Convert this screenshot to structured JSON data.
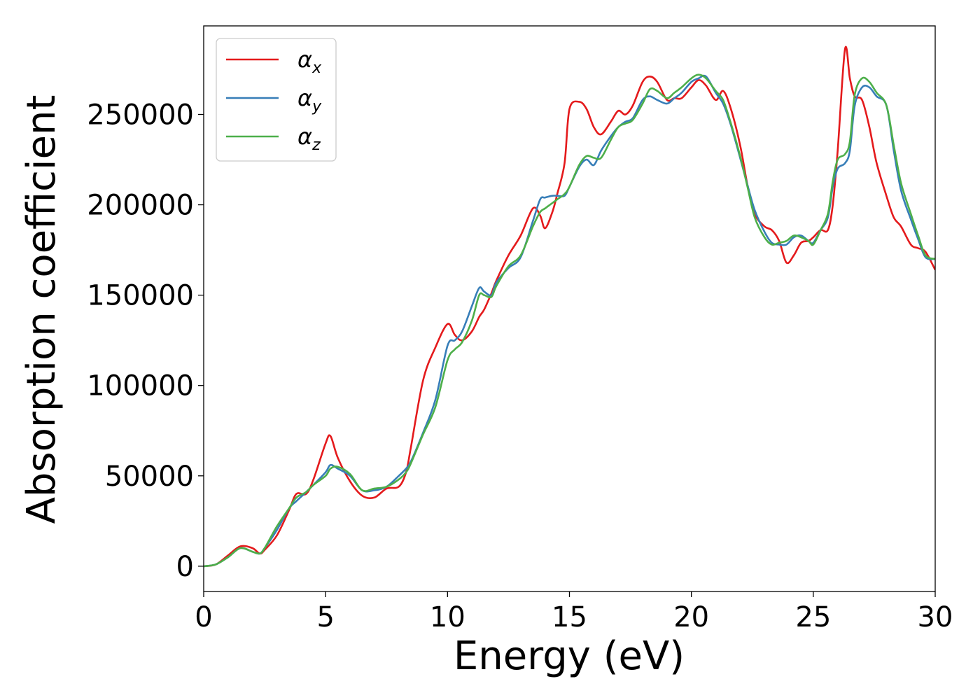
{
  "chart_data": {
    "type": "line",
    "xlabel": "Energy (eV)",
    "ylabel": "Absorption coefficient",
    "xlim": [
      0,
      30
    ],
    "ylim": [
      -14000,
      299000
    ],
    "xticks": [
      0,
      5,
      10,
      15,
      20,
      25,
      30
    ],
    "yticks": [
      0,
      50000,
      100000,
      150000,
      200000,
      250000
    ],
    "grid": false,
    "legend_position": "upper-left",
    "x": [
      0.0,
      0.5,
      1.0,
      1.5,
      2.0,
      2.3,
      2.5,
      3.0,
      3.5,
      3.8,
      4.2,
      4.5,
      5.0,
      5.2,
      5.5,
      6.0,
      6.5,
      7.0,
      7.5,
      8.0,
      8.3,
      8.5,
      9.0,
      9.5,
      10.0,
      10.3,
      10.6,
      11.0,
      11.3,
      11.5,
      11.8,
      12.0,
      12.5,
      13.0,
      13.5,
      13.8,
      14.0,
      14.3,
      14.5,
      14.8,
      15.0,
      15.4,
      15.7,
      16.0,
      16.3,
      16.7,
      17.0,
      17.3,
      17.6,
      18.0,
      18.3,
      18.6,
      19.0,
      19.3,
      19.6,
      20.0,
      20.3,
      20.6,
      21.0,
      21.3,
      21.6,
      22.0,
      22.3,
      22.6,
      23.0,
      23.3,
      23.6,
      23.9,
      24.2,
      24.5,
      24.8,
      25.0,
      25.3,
      25.6,
      25.8,
      26.0,
      26.3,
      26.5,
      26.7,
      27.0,
      27.3,
      27.6,
      28.0,
      28.3,
      28.6,
      29.0,
      29.3,
      29.6,
      30.0
    ],
    "series": [
      {
        "name": "αx",
        "color": "#e41a1c",
        "values": [
          0,
          1000,
          6000,
          11000,
          10000,
          7000,
          9000,
          17000,
          31000,
          40000,
          40000,
          48000,
          68000,
          72000,
          60000,
          47000,
          39000,
          38000,
          43000,
          44000,
          52000,
          66000,
          103000,
          121000,
          134000,
          128000,
          125000,
          130000,
          138000,
          142000,
          151000,
          158000,
          172000,
          183000,
          198000,
          194000,
          187000,
          196000,
          206000,
          223000,
          253000,
          257000,
          253000,
          243000,
          239000,
          246000,
          252000,
          250000,
          255000,
          268000,
          271000,
          268000,
          258000,
          259000,
          259000,
          265000,
          269000,
          266000,
          258000,
          263000,
          254000,
          233000,
          211000,
          195000,
          188000,
          186000,
          180000,
          168000,
          172000,
          179000,
          180000,
          182000,
          186000,
          186000,
          200000,
          230000,
          286000,
          270000,
          260000,
          258000,
          243000,
          223000,
          205000,
          193000,
          188000,
          178000,
          176000,
          174000,
          164000
        ]
      },
      {
        "name": "αy",
        "color": "#377eb8",
        "values": [
          0,
          1000,
          5000,
          10000,
          8000,
          7000,
          10000,
          20000,
          32000,
          36000,
          41000,
          45000,
          52000,
          56000,
          54000,
          50000,
          42000,
          42000,
          44000,
          50000,
          54000,
          58000,
          74000,
          92000,
          122000,
          125000,
          130000,
          144000,
          154000,
          152000,
          150000,
          157000,
          165000,
          171000,
          191000,
          203000,
          204000,
          205000,
          205000,
          205000,
          210000,
          221000,
          225000,
          222000,
          230000,
          238000,
          243000,
          246000,
          248000,
          258000,
          260000,
          258000,
          256000,
          259000,
          262000,
          268000,
          270000,
          271000,
          262000,
          256000,
          245000,
          226000,
          211000,
          197000,
          185000,
          179000,
          178000,
          178000,
          182000,
          183000,
          180000,
          179000,
          186000,
          193000,
          210000,
          220000,
          223000,
          230000,
          255000,
          265000,
          265000,
          260000,
          255000,
          230000,
          208000,
          192000,
          181000,
          171000,
          170000
        ]
      },
      {
        "name": "αz",
        "color": "#4daf4a",
        "values": [
          0,
          1000,
          5000,
          10000,
          8000,
          7000,
          10000,
          22000,
          32000,
          38000,
          41000,
          45000,
          50000,
          54000,
          55000,
          51000,
          42000,
          43000,
          44000,
          48000,
          52000,
          57000,
          73000,
          88000,
          114000,
          120000,
          124000,
          136000,
          150000,
          150000,
          149000,
          155000,
          166000,
          172000,
          188000,
          196000,
          198000,
          201000,
          203000,
          206000,
          210000,
          222000,
          227000,
          226000,
          226000,
          236000,
          243000,
          245000,
          247000,
          256000,
          264000,
          263000,
          259000,
          262000,
          265000,
          270000,
          272000,
          270000,
          263000,
          258000,
          246000,
          227000,
          210000,
          193000,
          182000,
          178000,
          179000,
          180000,
          183000,
          182000,
          180000,
          178000,
          186000,
          195000,
          213000,
          225000,
          228000,
          235000,
          261000,
          270000,
          268000,
          262000,
          255000,
          233000,
          212000,
          195000,
          183000,
          172000,
          170000
        ]
      }
    ],
    "legend": [
      {
        "base": "α",
        "sub": "x"
      },
      {
        "base": "α",
        "sub": "y"
      },
      {
        "base": "α",
        "sub": "z"
      }
    ]
  }
}
